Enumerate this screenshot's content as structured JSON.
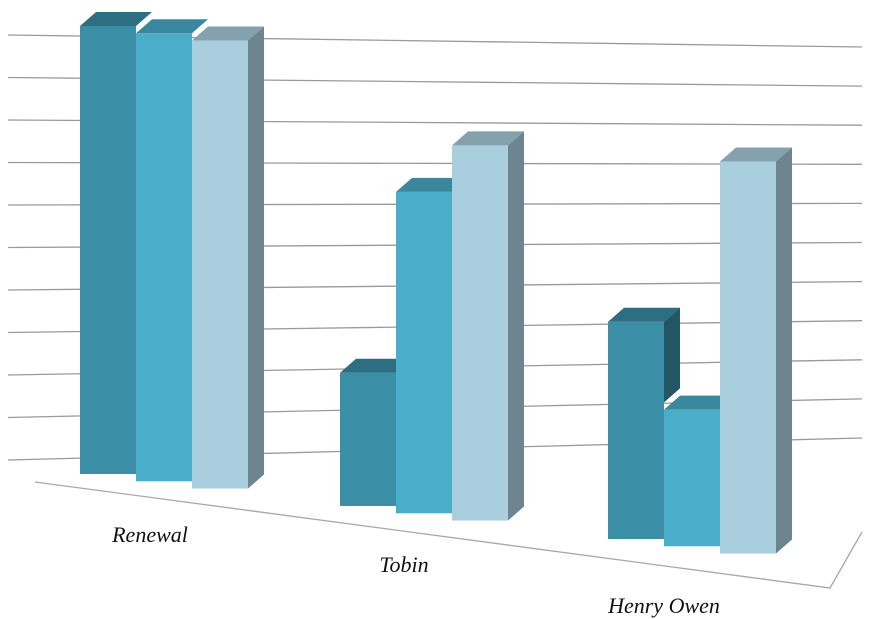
{
  "chart_data": {
    "type": "bar",
    "style": "3d-clustered-column",
    "title": "",
    "xlabel": "",
    "ylabel": "",
    "categories": [
      "Renewal",
      "Tobin",
      "Henry Owen"
    ],
    "ylim": [
      0,
      10
    ],
    "grid": true,
    "legend": "none",
    "series": [
      {
        "values": [
          10.0,
          3.6,
          6.1
        ],
        "color": "#3A8EA6"
      },
      {
        "values": [
          10.0,
          7.8,
          4.3
        ],
        "color": "#4AAECA"
      },
      {
        "values": [
          10.0,
          9.0,
          10.0
        ],
        "color": "#A9CFDE"
      }
    ],
    "colors": {
      "grid": "#9a9a9a",
      "floor": "#a8a8a8",
      "side_shade": "#6E8590"
    }
  }
}
